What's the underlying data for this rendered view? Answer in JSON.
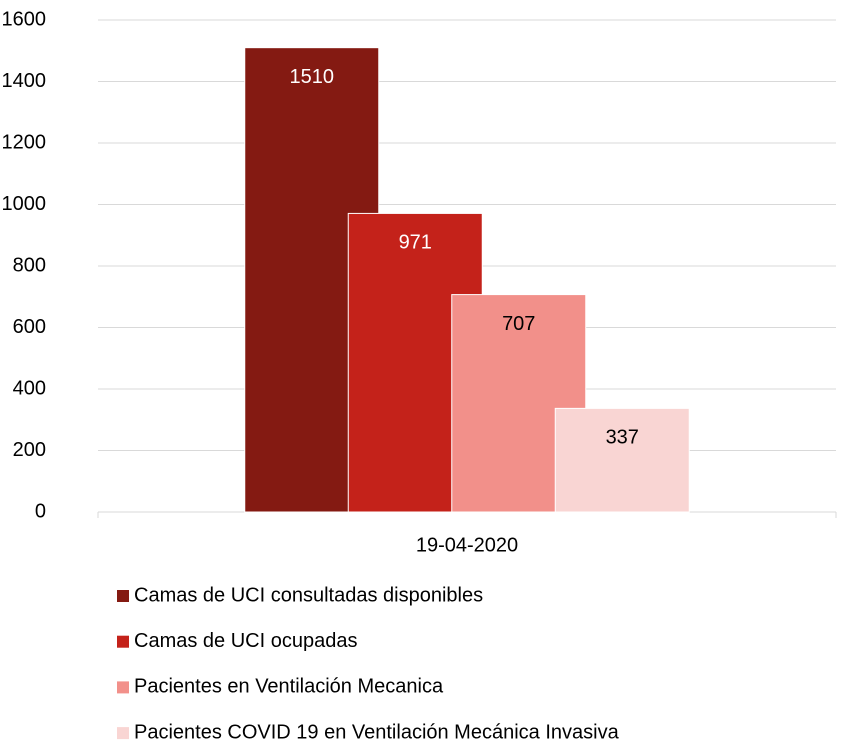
{
  "chart_data": {
    "type": "bar",
    "categories": [
      "19-04-2020"
    ],
    "series": [
      {
        "name": "Camas de UCI consultadas disponibles",
        "color": "#841a12",
        "label_color": "#ffffff",
        "values": [
          1510
        ]
      },
      {
        "name": "Camas de UCI ocupadas",
        "color": "#c4221a",
        "label_color": "#ffffff",
        "values": [
          971
        ]
      },
      {
        "name": "Pacientes en Ventilación Mecanica",
        "color": "#f2908a",
        "label_color": "#000000",
        "values": [
          707
        ]
      },
      {
        "name": "Pacientes COVID 19 en Ventilación Mecánica Invasiva",
        "color": "#f9d5d3",
        "label_color": "#000000",
        "values": [
          337
        ]
      }
    ],
    "ylim": [
      0,
      1600
    ],
    "yticks": [
      0,
      200,
      400,
      600,
      800,
      1000,
      1200,
      1400,
      1600
    ],
    "grid": true,
    "legend": "bottom"
  }
}
